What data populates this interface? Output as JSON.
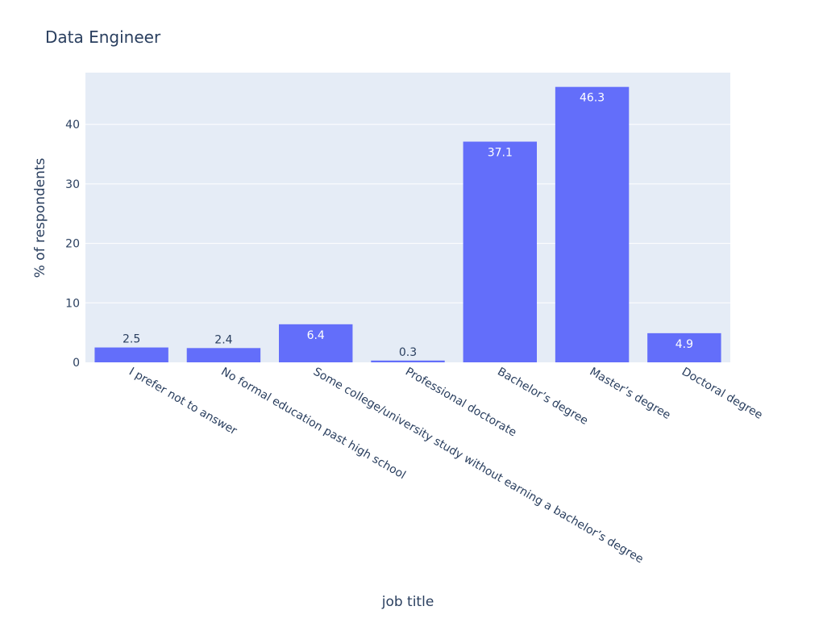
{
  "chart_data": {
    "type": "bar",
    "title": "Data Engineer",
    "xlabel": "job title",
    "ylabel": "% of respondents",
    "categories": [
      "I prefer not to answer",
      "No formal education past high school",
      "Some college/university study without earning a bachelor’s degree",
      "Professional doctorate",
      "Bachelor’s degree",
      "Master’s degree",
      "Doctoral degree"
    ],
    "values": [
      2.5,
      2.4,
      6.4,
      0.3,
      37.1,
      46.3,
      4.9
    ],
    "data_labels": [
      "2.5",
      "2.4",
      "6.4",
      "0.3",
      "37.1",
      "46.3",
      "4.9"
    ],
    "ylim": [
      0,
      48.7
    ],
    "yticks": [
      0,
      10,
      20,
      30,
      40
    ],
    "grid": true,
    "bar_color": "#636efa",
    "plot_background": "#e5ecf6",
    "grid_color": "#ffffff",
    "text_color": "#2a3f5f",
    "legend": "none"
  }
}
